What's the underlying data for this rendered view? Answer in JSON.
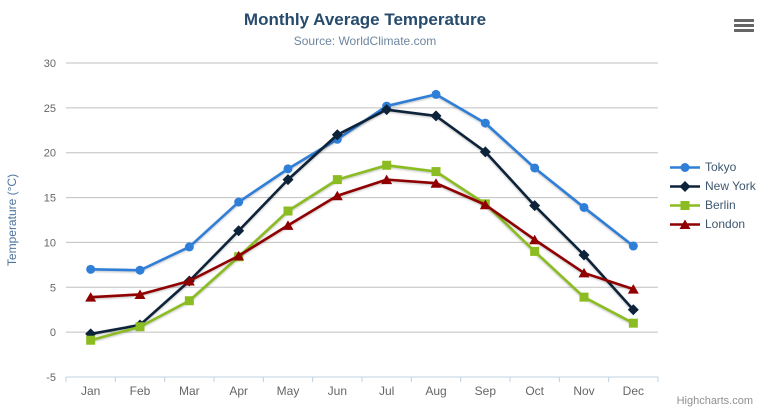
{
  "chart_data": {
    "type": "line",
    "title": "Monthly Average Temperature",
    "subtitle": "Source: WorldClimate.com",
    "ylabel": "Temperature (°C)",
    "xlabel": "",
    "categories": [
      "Jan",
      "Feb",
      "Mar",
      "Apr",
      "May",
      "Jun",
      "Jul",
      "Aug",
      "Sep",
      "Oct",
      "Nov",
      "Dec"
    ],
    "yticks": [
      -5,
      0,
      5,
      10,
      15,
      20,
      25,
      30
    ],
    "ylim": [
      -5,
      30
    ],
    "grid": true,
    "legend_position": "right",
    "series": [
      {
        "name": "Tokyo",
        "color": "#2f7ed8",
        "marker": "circle",
        "values": [
          7.0,
          6.9,
          9.5,
          14.5,
          18.2,
          21.5,
          25.2,
          26.5,
          23.3,
          18.3,
          13.9,
          9.6
        ]
      },
      {
        "name": "New York",
        "color": "#0d233a",
        "marker": "diamond",
        "values": [
          -0.2,
          0.8,
          5.7,
          11.3,
          17.0,
          22.0,
          24.8,
          24.1,
          20.1,
          14.1,
          8.6,
          2.5
        ]
      },
      {
        "name": "Berlin",
        "color": "#8bbc21",
        "marker": "square",
        "values": [
          -0.9,
          0.6,
          3.5,
          8.4,
          13.5,
          17.0,
          18.6,
          17.9,
          14.3,
          9.0,
          3.9,
          1.0
        ]
      },
      {
        "name": "London",
        "color": "#910000",
        "marker": "triangle",
        "values": [
          3.9,
          4.2,
          5.7,
          8.5,
          11.9,
          15.2,
          17.0,
          16.6,
          14.2,
          10.3,
          6.6,
          4.8
        ]
      }
    ]
  },
  "export_menu": {
    "icon": "hamburger-icon"
  },
  "credits": {
    "text": "Highcharts.com"
  },
  "colors": {
    "title": "#274b6d",
    "subtitle": "#6D869F",
    "axis_labels": "#666666",
    "axis_title": "#4d759e",
    "grid_line": "#C0C0C0",
    "axis_line": "#C0D0E0",
    "legend_text": "#3E576F",
    "background": "#ffffff"
  }
}
